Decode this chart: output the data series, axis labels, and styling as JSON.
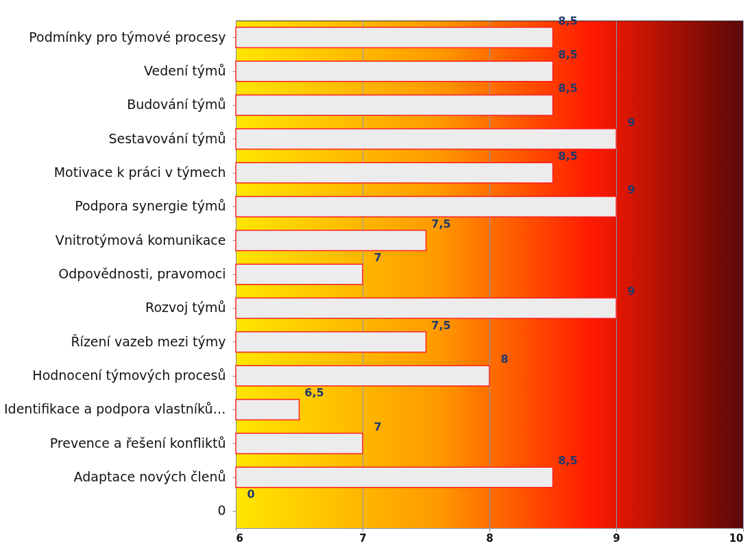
{
  "chart_data": {
    "type": "bar",
    "orientation": "horizontal",
    "categories": [
      "Podmínky pro týmové procesy",
      "Vedení týmů",
      "Budování týmů",
      "Sestavování týmů",
      "Motivace k práci v týmech",
      "Podpora synergie týmů",
      "Vnitrotýmová komunikace",
      "Odpovědnosti, pravomoci",
      "Rozvoj týmů",
      "Řízení vazeb mezi týmy",
      "Hodnocení týmových procesů",
      "Identifikace a podpora vlastníků…",
      "Prevence a řešení konfliktů",
      "Adaptace nových členů",
      "0"
    ],
    "values": [
      8.5,
      8.5,
      8.5,
      9,
      8.5,
      9,
      7.5,
      7,
      9,
      7.5,
      8,
      6.5,
      7,
      8.5,
      null
    ],
    "value_labels": [
      "8,5",
      "8,5",
      "8,5",
      "9",
      "8,5",
      "9",
      "7,5",
      "7",
      "9",
      "7,5",
      "8",
      "6,5",
      "7",
      "8,5",
      "0"
    ],
    "color": "#ececec",
    "xlim": [
      6,
      10
    ],
    "xticks": [
      6,
      7,
      8,
      9,
      10
    ],
    "grid": "x"
  }
}
